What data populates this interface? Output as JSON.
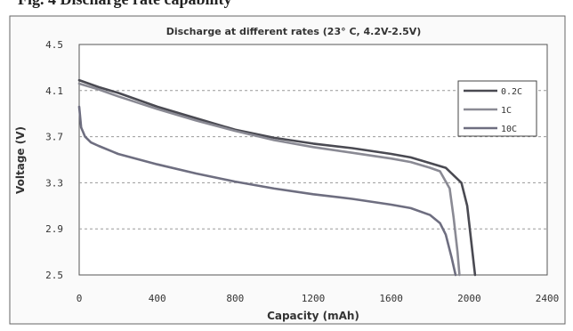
{
  "figure": {
    "caption": "Fig. 4   Discharge rate capability"
  },
  "colors": {
    "series_0_2C": "#4a4a52",
    "series_1C": "#8a8a94",
    "series_10C": "#6e6e80",
    "grid": "#9a9a9a",
    "plot_border": "#555555"
  },
  "chart_data": {
    "type": "line",
    "title": "Discharge at different rates (23° C, 4.2V-2.5V)",
    "xlabel": "Capacity (mAh)",
    "ylabel": "Voltage (V)",
    "xlim": [
      0,
      2400
    ],
    "ylim": [
      2.5,
      4.5
    ],
    "xticks": [
      0,
      400,
      800,
      1200,
      1600,
      2000,
      2400
    ],
    "yticks": [
      2.5,
      2.9,
      3.3,
      3.7,
      4.1,
      4.5
    ],
    "xtick_labels": [
      "0",
      "400",
      "800",
      "1200",
      "1600",
      "2000",
      "2400"
    ],
    "ytick_labels": [
      "2.5",
      "2.9",
      "3.3",
      "3.7",
      "4.1",
      "4.5"
    ],
    "grid": "horizontal dashed",
    "legend_position": "top-right",
    "series": [
      {
        "name": "0.2C",
        "x": [
          0,
          100,
          200,
          400,
          600,
          800,
          1000,
          1200,
          1400,
          1600,
          1700,
          1800,
          1880,
          1960,
          1990,
          2010,
          2030
        ],
        "y": [
          4.19,
          4.13,
          4.08,
          3.96,
          3.86,
          3.76,
          3.69,
          3.64,
          3.6,
          3.55,
          3.52,
          3.47,
          3.43,
          3.3,
          3.1,
          2.8,
          2.5
        ]
      },
      {
        "name": "1C",
        "x": [
          0,
          100,
          200,
          400,
          600,
          800,
          1000,
          1200,
          1400,
          1600,
          1700,
          1800,
          1850,
          1900,
          1920,
          1940,
          1950
        ],
        "y": [
          4.16,
          4.11,
          4.05,
          3.94,
          3.84,
          3.75,
          3.67,
          3.61,
          3.56,
          3.51,
          3.48,
          3.43,
          3.4,
          3.25,
          3.0,
          2.7,
          2.5
        ]
      },
      {
        "name": "10C",
        "x": [
          0,
          10,
          30,
          60,
          100,
          200,
          400,
          600,
          800,
          1000,
          1200,
          1400,
          1600,
          1700,
          1800,
          1850,
          1880,
          1910,
          1930
        ],
        "y": [
          3.96,
          3.78,
          3.7,
          3.65,
          3.62,
          3.55,
          3.46,
          3.38,
          3.31,
          3.25,
          3.2,
          3.16,
          3.11,
          3.08,
          3.02,
          2.95,
          2.85,
          2.65,
          2.5
        ]
      }
    ]
  }
}
